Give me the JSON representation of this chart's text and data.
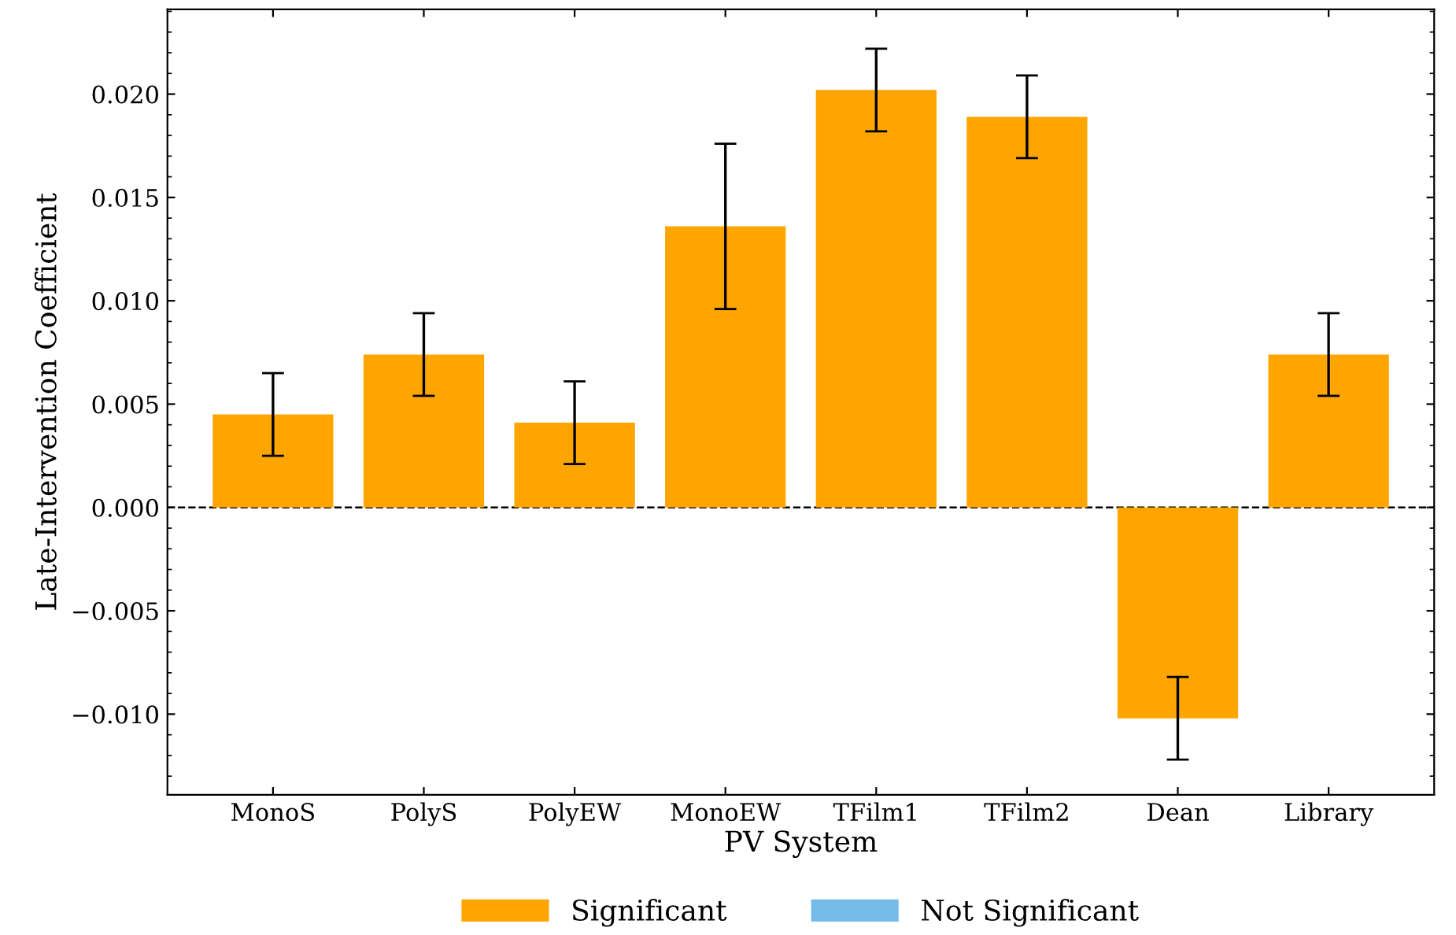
{
  "chart_data": {
    "type": "bar",
    "xlabel": "PV System",
    "ylabel": "Late-Intervention Coefficient",
    "categories": [
      "MonoS",
      "PolyS",
      "PolyEW",
      "MonoEW",
      "TFilm1",
      "TFilm2",
      "Dean",
      "Library"
    ],
    "series": [
      {
        "name": "Significant",
        "color": "#ffa500",
        "values": [
          0.0045,
          0.0074,
          0.0041,
          0.0136,
          0.0202,
          0.0189,
          -0.0102,
          0.0074
        ],
        "errors": [
          0.002,
          0.002,
          0.002,
          0.004,
          0.002,
          0.002,
          0.002,
          0.002
        ]
      },
      {
        "name": "Not Significant",
        "color": "#75bbe8",
        "values": [
          null,
          null,
          null,
          null,
          null,
          null,
          null,
          null
        ]
      }
    ],
    "ylim": [
      -0.0139,
      0.0241
    ],
    "yticks": [
      {
        "value": -0.01,
        "label": "−0.010"
      },
      {
        "value": -0.005,
        "label": "−0.005"
      },
      {
        "value": 0,
        "label": "0.000"
      },
      {
        "value": 0.005,
        "label": "0.005"
      },
      {
        "value": 0.01,
        "label": "0.010"
      },
      {
        "value": 0.015,
        "label": "0.015"
      },
      {
        "value": 0.02,
        "label": "0.020"
      }
    ],
    "ref_lines": [
      {
        "axis": "y",
        "value": 0,
        "color": "#000000",
        "line_style": "dashed"
      }
    ],
    "legend": "bottom",
    "grid": false
  }
}
